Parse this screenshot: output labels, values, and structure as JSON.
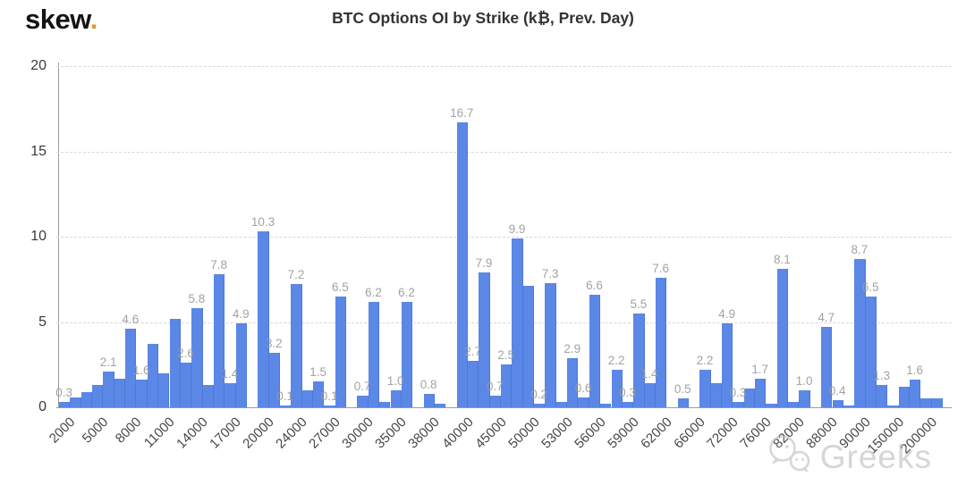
{
  "logo": {
    "text": "skew",
    "dot": "."
  },
  "header": {
    "title": "BTC Options OI by Strike (k₿, Prev. Day)"
  },
  "watermark": {
    "text": "Greeks",
    "icon": "wechat-icon"
  },
  "colors": {
    "bar": "#5b87e6",
    "bar_edge": "#4d7ad6",
    "value_label": "#9b9b9b",
    "axis": "#9a9a9a",
    "grid": "#d9d9d9",
    "title": "#333333",
    "logo_dot": "#d99b2e",
    "watermark": "#b5b5b5"
  },
  "chart_data": {
    "type": "bar",
    "title": "BTC Options OI by Strike (k₿, Prev. Day)",
    "xlabel": "",
    "ylabel": "",
    "ylim": [
      0,
      20
    ],
    "yticks": [
      0,
      5,
      10,
      15,
      20
    ],
    "grid": "horizontal-dashed",
    "legend": "none",
    "x_tick_labels": [
      "2000",
      "5000",
      "8000",
      "11000",
      "14000",
      "17000",
      "20000",
      "24000",
      "27000",
      "30000",
      "35000",
      "38000",
      "40000",
      "45000",
      "50000",
      "53000",
      "56000",
      "59000",
      "62000",
      "66000",
      "72000",
      "76000",
      "82000",
      "88000",
      "90000",
      "150000",
      "200000"
    ],
    "bars": [
      {
        "value": 0.3,
        "label": "0.3",
        "tick": "2000"
      },
      {
        "value": 0.6
      },
      {
        "value": 0.9
      },
      {
        "value": 1.3,
        "tick": "5000"
      },
      {
        "value": 2.1,
        "label": "2.1"
      },
      {
        "value": 1.7
      },
      {
        "value": 4.6,
        "label": "4.6",
        "tick": "8000"
      },
      {
        "value": 1.6,
        "label": "1.6"
      },
      {
        "value": 3.7
      },
      {
        "value": 2.0,
        "tick": "11000"
      },
      {
        "value": 5.2
      },
      {
        "value": 2.6,
        "label": "2.6"
      },
      {
        "value": 5.8,
        "label": "5.8",
        "tick": "14000"
      },
      {
        "value": 1.3
      },
      {
        "value": 7.8,
        "label": "7.8"
      },
      {
        "value": 1.4,
        "label": "1.4",
        "tick": "17000"
      },
      {
        "value": 4.9,
        "label": "4.9"
      },
      {
        "value": 0.0
      },
      {
        "value": 10.3,
        "label": "10.3",
        "tick": "20000"
      },
      {
        "value": 3.2,
        "label": "3.2"
      },
      {
        "value": 0.1,
        "label": "0.1"
      },
      {
        "value": 7.2,
        "label": "7.2",
        "tick": "24000"
      },
      {
        "value": 1.0
      },
      {
        "value": 1.5,
        "label": "1.5"
      },
      {
        "value": 0.1,
        "label": "0.1",
        "tick": "27000"
      },
      {
        "value": 6.5,
        "label": "6.5"
      },
      {
        "value": 0.0
      },
      {
        "value": 0.7,
        "label": "0.7",
        "tick": "30000"
      },
      {
        "value": 6.2,
        "label": "6.2"
      },
      {
        "value": 0.3
      },
      {
        "value": 1.0,
        "label": "1.0",
        "tick": "35000"
      },
      {
        "value": 6.2,
        "label": "6.2"
      },
      {
        "value": 0.0
      },
      {
        "value": 0.8,
        "label": "0.8",
        "tick": "38000"
      },
      {
        "value": 0.2
      },
      {
        "value": 0.0
      },
      {
        "value": 16.7,
        "label": "16.7",
        "tick": "40000"
      },
      {
        "value": 2.7,
        "label": "2.7"
      },
      {
        "value": 7.9,
        "label": "7.9"
      },
      {
        "value": 0.7,
        "label": "0.7",
        "tick": "45000"
      },
      {
        "value": 2.5,
        "label": "2.5"
      },
      {
        "value": 9.9,
        "label": "9.9"
      },
      {
        "value": 7.1,
        "tick": "50000"
      },
      {
        "value": 0.2,
        "label": "0.2"
      },
      {
        "value": 7.3,
        "label": "7.3"
      },
      {
        "value": 0.3,
        "tick": "53000"
      },
      {
        "value": 2.9,
        "label": "2.9"
      },
      {
        "value": 0.6,
        "label": "0.6"
      },
      {
        "value": 6.6,
        "label": "6.6",
        "tick": "56000"
      },
      {
        "value": 0.2
      },
      {
        "value": 2.2,
        "label": "2.2"
      },
      {
        "value": 0.3,
        "label": "0.3",
        "tick": "59000"
      },
      {
        "value": 5.5,
        "label": "5.5"
      },
      {
        "value": 1.4,
        "label": "1.4"
      },
      {
        "value": 7.6,
        "label": "7.6",
        "tick": "62000"
      },
      {
        "value": 0.0
      },
      {
        "value": 0.5,
        "label": "0.5"
      },
      {
        "value": 0.0,
        "tick": "66000"
      },
      {
        "value": 2.2,
        "label": "2.2"
      },
      {
        "value": 1.4
      },
      {
        "value": 4.9,
        "label": "4.9",
        "tick": "72000"
      },
      {
        "value": 0.3,
        "label": "0.3"
      },
      {
        "value": 1.1
      },
      {
        "value": 1.7,
        "label": "1.7",
        "tick": "76000"
      },
      {
        "value": 0.2
      },
      {
        "value": 8.1,
        "label": "8.1"
      },
      {
        "value": 0.3,
        "tick": "82000"
      },
      {
        "value": 1.0,
        "label": "1.0"
      },
      {
        "value": 0.0
      },
      {
        "value": 4.7,
        "label": "4.7",
        "tick": "88000"
      },
      {
        "value": 0.4,
        "label": "0.4"
      },
      {
        "value": 0.1
      },
      {
        "value": 8.7,
        "label": "8.7",
        "tick": "90000"
      },
      {
        "value": 6.5,
        "label": "6.5"
      },
      {
        "value": 1.3,
        "label": "1.3"
      },
      {
        "value": 0.1,
        "tick": "150000"
      },
      {
        "value": 1.2
      },
      {
        "value": 1.6,
        "label": "1.6"
      },
      {
        "value": 0.5,
        "tick": "200000"
      },
      {
        "value": 0.5
      }
    ]
  }
}
